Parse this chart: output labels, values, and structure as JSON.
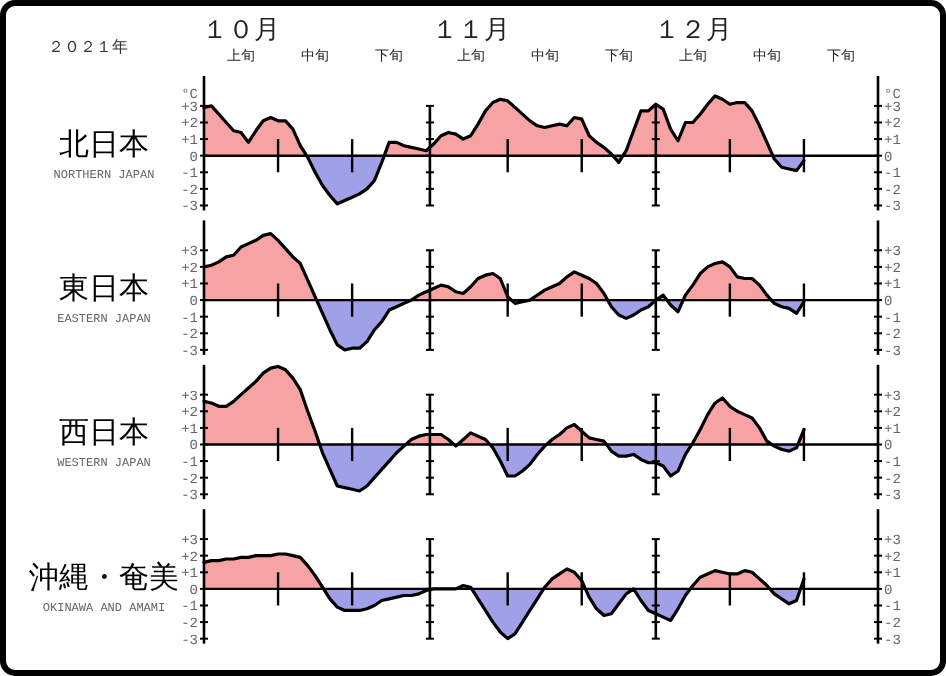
{
  "chart_data": [
    {
      "type": "area",
      "title": "北日本",
      "subtitle": "NORTHERN JAPAN",
      "ylabel": "°C",
      "y2label": "°C",
      "annotations": [
        "２０２１年",
        "１０月",
        "１１月",
        "１２月"
      ],
      "colors": [
        "#f7a3a3",
        "#a0a0e8"
      ],
      "categories": [
        null,
        null,
        null,
        null,
        null,
        "上旬",
        null,
        null,
        null,
        null,
        null,
        null,
        null,
        null,
        null,
        "中旬",
        null,
        null,
        null,
        null,
        null,
        null,
        null,
        null,
        null,
        "下旬",
        null,
        null,
        null,
        null,
        null,
        null,
        null,
        null,
        null,
        null,
        "上旬",
        null,
        null,
        null,
        null,
        null,
        null,
        null,
        null,
        null,
        "中旬",
        null,
        null,
        null,
        null,
        null,
        null,
        null,
        null,
        null,
        "下旬",
        null,
        null,
        null,
        null,
        null,
        null,
        null,
        null,
        null,
        "上旬",
        null,
        null,
        null,
        null,
        null,
        null,
        null,
        null,
        null,
        "中旬",
        null,
        null,
        null,
        null,
        null,
        null,
        null,
        null,
        null,
        "下旬",
        null,
        null,
        null,
        null,
        null
      ],
      "series": [
        {
          "color": "#000000",
          "values": [
            2.9,
            3.0,
            2.5,
            2.0,
            1.5,
            1.4,
            0.8,
            1.5,
            2.1,
            2.3,
            2.1,
            2.1,
            1.6,
            0.6,
            -0.1,
            -1.0,
            -1.8,
            -2.4,
            -2.9,
            -2.7,
            -2.5,
            -2.3,
            -2.0,
            -1.5,
            -0.4,
            0.8,
            0.8,
            0.6,
            0.5,
            0.4,
            0.3,
            0.7,
            1.2,
            1.4,
            1.3,
            1.0,
            1.2,
            1.9,
            2.7,
            3.2,
            3.4,
            3.3,
            2.9,
            2.5,
            2.1,
            1.8,
            1.7,
            1.8,
            1.9,
            1.8,
            2.3,
            2.2,
            1.2,
            0.8,
            0.5,
            0.1,
            -0.4,
            0.3,
            1.5,
            2.7,
            2.7,
            3.1,
            2.8,
            1.6,
            0.9,
            2.0,
            2.0,
            2.5,
            3.1,
            3.6,
            3.4,
            3.1,
            3.2,
            3.2,
            2.7,
            1.8,
            0.8,
            -0.2,
            -0.7,
            -0.8,
            -0.9,
            -0.3,
            null,
            null,
            null,
            null,
            null,
            null,
            null,
            null,
            null,
            null
          ]
        }
      ],
      "ylim": [
        -3.3,
        4.8
      ],
      "yticks": [
        {
          "value": 3,
          "label": "+3"
        },
        {
          "value": 2,
          "label": "+2"
        },
        {
          "value": 1,
          "label": "+1"
        },
        {
          "value": 0,
          "label": "0"
        },
        {
          "value": -1,
          "label": "-1"
        },
        {
          "value": -2,
          "label": "-2"
        },
        {
          "value": -3,
          "label": "-3"
        }
      ],
      "y2lim": [
        -3.3,
        4.8
      ],
      "y2ticks": [
        {
          "value": 3,
          "label": "+3"
        },
        {
          "value": 2,
          "label": "+2"
        },
        {
          "value": 1,
          "label": "+1"
        },
        {
          "value": 0,
          "label": "0"
        },
        {
          "value": -1,
          "label": "-1"
        },
        {
          "value": -2,
          "label": "-2"
        },
        {
          "value": -3,
          "label": "-3"
        }
      ]
    },
    {
      "type": "area",
      "title": "東日本",
      "subtitle": "EASTERN JAPAN",
      "colors": [
        "#f7a3a3",
        "#a0a0e8"
      ],
      "categories": [
        null,
        null,
        null,
        null,
        null,
        null,
        null,
        null,
        null,
        null,
        null,
        null,
        null,
        null,
        null,
        null,
        null,
        null,
        null,
        null,
        null,
        null,
        null,
        null,
        null,
        null,
        null,
        null,
        null,
        null,
        null,
        null,
        null,
        null,
        null,
        null,
        null,
        null,
        null,
        null,
        null,
        null,
        null,
        null,
        null,
        null,
        null,
        null,
        null,
        null,
        null,
        null,
        null,
        null,
        null,
        null,
        null,
        null,
        null,
        null,
        null,
        null,
        null,
        null,
        null,
        null,
        null,
        null,
        null,
        null,
        null,
        null,
        null,
        null,
        null,
        null,
        null,
        null,
        null,
        null,
        null,
        null,
        null,
        null,
        null,
        null,
        null,
        null,
        null,
        null,
        null,
        null
      ],
      "series": [
        {
          "color": "#000000",
          "values": [
            2.0,
            2.1,
            2.3,
            2.6,
            2.7,
            3.2,
            3.4,
            3.6,
            3.9,
            4.0,
            3.6,
            3.1,
            2.6,
            2.2,
            1.2,
            0.2,
            -0.8,
            -1.8,
            -2.7,
            -3.0,
            -2.9,
            -2.9,
            -2.5,
            -1.8,
            -1.3,
            -0.6,
            -0.4,
            -0.2,
            0.0,
            0.3,
            0.5,
            0.7,
            0.9,
            0.8,
            0.5,
            0.4,
            0.8,
            1.3,
            1.5,
            1.6,
            1.3,
            0.2,
            -0.2,
            -0.1,
            0.0,
            0.3,
            0.6,
            0.8,
            1.0,
            1.4,
            1.7,
            1.5,
            1.3,
            1.0,
            0.4,
            -0.4,
            -0.9,
            -1.1,
            -0.9,
            -0.6,
            -0.4,
            0.0,
            0.3,
            -0.3,
            -0.7,
            0.3,
            0.9,
            1.6,
            2.0,
            2.2,
            2.3,
            2.0,
            1.4,
            1.3,
            1.3,
            0.9,
            0.3,
            -0.2,
            -0.4,
            -0.5,
            -0.8,
            -0.1,
            null,
            null,
            null,
            null,
            null,
            null,
            null,
            null,
            null,
            null
          ]
        }
      ],
      "ylim": [
        -3.3,
        4.8
      ],
      "yticks": [
        {
          "value": 3,
          "label": "+3"
        },
        {
          "value": 2,
          "label": "+2"
        },
        {
          "value": 1,
          "label": "+1"
        },
        {
          "value": 0,
          "label": "0"
        },
        {
          "value": -1,
          "label": "-1"
        },
        {
          "value": -2,
          "label": "-2"
        },
        {
          "value": -3,
          "label": "-3"
        }
      ],
      "y2lim": [
        -3.3,
        4.8
      ],
      "y2ticks": [
        {
          "value": 3,
          "label": "+3"
        },
        {
          "value": 2,
          "label": "+2"
        },
        {
          "value": 1,
          "label": "+1"
        },
        {
          "value": 0,
          "label": "0"
        },
        {
          "value": -1,
          "label": "-1"
        },
        {
          "value": -2,
          "label": "-2"
        },
        {
          "value": -3,
          "label": "-3"
        }
      ]
    },
    {
      "type": "area",
      "title": "西日本",
      "subtitle": "WESTERN JAPAN",
      "colors": [
        "#f7a3a3",
        "#a0a0e8"
      ],
      "categories": [
        null,
        null,
        null,
        null,
        null,
        null,
        null,
        null,
        null,
        null,
        null,
        null,
        null,
        null,
        null,
        null,
        null,
        null,
        null,
        null,
        null,
        null,
        null,
        null,
        null,
        null,
        null,
        null,
        null,
        null,
        null,
        null,
        null,
        null,
        null,
        null,
        null,
        null,
        null,
        null,
        null,
        null,
        null,
        null,
        null,
        null,
        null,
        null,
        null,
        null,
        null,
        null,
        null,
        null,
        null,
        null,
        null,
        null,
        null,
        null,
        null,
        null,
        null,
        null,
        null,
        null,
        null,
        null,
        null,
        null,
        null,
        null,
        null,
        null,
        null,
        null,
        null,
        null,
        null,
        null,
        null,
        null,
        null,
        null,
        null,
        null,
        null,
        null,
        null,
        null,
        null,
        null
      ],
      "series": [
        {
          "color": "#000000",
          "values": [
            2.6,
            2.5,
            2.3,
            2.3,
            2.6,
            3.0,
            3.4,
            3.8,
            4.3,
            4.6,
            4.7,
            4.5,
            4.0,
            3.3,
            2.0,
            0.8,
            -0.5,
            -1.5,
            -2.5,
            -2.6,
            -2.7,
            -2.8,
            -2.5,
            -2.0,
            -1.5,
            -1.0,
            -0.5,
            -0.1,
            0.3,
            0.5,
            0.6,
            0.6,
            0.6,
            0.3,
            -0.1,
            0.3,
            0.7,
            0.5,
            0.3,
            -0.2,
            -1.0,
            -1.9,
            -1.9,
            -1.6,
            -1.2,
            -0.6,
            -0.1,
            0.3,
            0.6,
            1.0,
            1.2,
            0.8,
            0.4,
            0.3,
            0.2,
            -0.4,
            -0.7,
            -0.7,
            -0.6,
            -0.9,
            -1.1,
            -1.1,
            -1.3,
            -1.9,
            -1.6,
            -0.6,
            0.1,
            0.9,
            1.8,
            2.5,
            2.8,
            2.3,
            2.0,
            1.8,
            1.6,
            1.0,
            0.2,
            -0.1,
            -0.3,
            -0.4,
            -0.2,
            0.9,
            null,
            null,
            null,
            null,
            null,
            null,
            null,
            null,
            null,
            null
          ]
        }
      ],
      "ylim": [
        -3.3,
        4.8
      ],
      "yticks": [
        {
          "value": 3,
          "label": "+3"
        },
        {
          "value": 2,
          "label": "+2"
        },
        {
          "value": 1,
          "label": "+1"
        },
        {
          "value": 0,
          "label": "0"
        },
        {
          "value": -1,
          "label": "-1"
        },
        {
          "value": -2,
          "label": "-2"
        },
        {
          "value": -3,
          "label": "-3"
        }
      ],
      "y2lim": [
        -3.3,
        4.8
      ],
      "y2ticks": [
        {
          "value": 3,
          "label": "+3"
        },
        {
          "value": 2,
          "label": "+2"
        },
        {
          "value": 1,
          "label": "+1"
        },
        {
          "value": 0,
          "label": "0"
        },
        {
          "value": -1,
          "label": "-1"
        },
        {
          "value": -2,
          "label": "-2"
        },
        {
          "value": -3,
          "label": "-3"
        }
      ]
    },
    {
      "type": "area",
      "title": "沖縄・奄美",
      "subtitle": "OKINAWA AND AMAMI",
      "colors": [
        "#f7a3a3",
        "#a0a0e8"
      ],
      "categories": [
        null,
        null,
        null,
        null,
        null,
        null,
        null,
        null,
        null,
        null,
        null,
        null,
        null,
        null,
        null,
        null,
        null,
        null,
        null,
        null,
        null,
        null,
        null,
        null,
        null,
        null,
        null,
        null,
        null,
        null,
        null,
        null,
        null,
        null,
        null,
        null,
        null,
        null,
        null,
        null,
        null,
        null,
        null,
        null,
        null,
        null,
        null,
        null,
        null,
        null,
        null,
        null,
        null,
        null,
        null,
        null,
        null,
        null,
        null,
        null,
        null,
        null,
        null,
        null,
        null,
        null,
        null,
        null,
        null,
        null,
        null,
        null,
        null,
        null,
        null,
        null,
        null,
        null,
        null,
        null,
        null,
        null,
        null,
        null,
        null,
        null,
        null,
        null,
        null,
        null,
        null,
        null
      ],
      "series": [
        {
          "color": "#000000",
          "values": [
            1.6,
            1.7,
            1.7,
            1.8,
            1.8,
            1.9,
            1.9,
            2.0,
            2.0,
            2.0,
            2.1,
            2.1,
            2.0,
            1.9,
            1.4,
            0.8,
            0.1,
            -0.6,
            -1.1,
            -1.3,
            -1.3,
            -1.3,
            -1.2,
            -1.0,
            -0.7,
            -0.6,
            -0.5,
            -0.4,
            -0.4,
            -0.3,
            -0.1,
            0.0,
            0.0,
            0.0,
            0.0,
            0.2,
            0.1,
            -0.6,
            -1.3,
            -2.0,
            -2.6,
            -3.0,
            -2.7,
            -2.0,
            -1.3,
            -0.6,
            0.1,
            0.6,
            0.9,
            1.2,
            1.0,
            0.5,
            -0.5,
            -1.2,
            -1.6,
            -1.5,
            -0.9,
            -0.3,
            0.0,
            -0.7,
            -1.3,
            -1.5,
            -1.7,
            -1.9,
            -1.2,
            -0.4,
            0.2,
            0.7,
            0.9,
            1.1,
            1.0,
            0.9,
            0.9,
            1.1,
            1.0,
            0.6,
            0.2,
            -0.3,
            -0.6,
            -0.9,
            -0.7,
            0.6,
            null,
            null,
            null,
            null,
            null,
            null,
            null,
            null,
            null,
            null
          ]
        }
      ],
      "ylim": [
        -3.3,
        4.8
      ],
      "yticks": [
        {
          "value": 3,
          "label": "+3"
        },
        {
          "value": 2,
          "label": "+2"
        },
        {
          "value": 1,
          "label": "+1"
        },
        {
          "value": 0,
          "label": "0"
        },
        {
          "value": -1,
          "label": "-1"
        },
        {
          "value": -2,
          "label": "-2"
        },
        {
          "value": -3,
          "label": "-3"
        }
      ],
      "y2lim": [
        -3.3,
        4.8
      ],
      "y2ticks": [
        {
          "value": 3,
          "label": "+3"
        },
        {
          "value": 2,
          "label": "+2"
        },
        {
          "value": 1,
          "label": "+1"
        },
        {
          "value": 0,
          "label": "0"
        },
        {
          "value": -1,
          "label": "-1"
        },
        {
          "value": -2,
          "label": "-2"
        },
        {
          "value": -3,
          "label": "-3"
        }
      ]
    }
  ]
}
